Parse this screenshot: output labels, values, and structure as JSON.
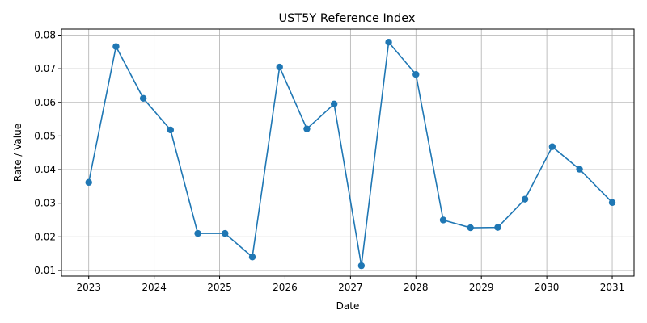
{
  "chart_data": {
    "type": "line",
    "title": "UST5Y Reference Index",
    "xlabel": "Date",
    "ylabel": "Rate / Value",
    "x_ticks": [
      "2023",
      "2024",
      "2025",
      "2026",
      "2027",
      "2028",
      "2029",
      "2030",
      "2031"
    ],
    "y_ticks": [
      "0.01",
      "0.02",
      "0.03",
      "0.04",
      "0.05",
      "0.06",
      "0.07",
      "0.08"
    ],
    "xlim": [
      "2022-08-01",
      "2031-05-01"
    ],
    "ylim": [
      0.0083,
      0.0818
    ],
    "grid": true,
    "series": [
      {
        "color": "#1f77b4",
        "marker": "circle",
        "x": [
          "2023-01-01",
          "2023-06-01",
          "2023-11-01",
          "2024-04-01",
          "2024-09-01",
          "2025-02-01",
          "2025-07-01",
          "2025-12-01",
          "2026-05-01",
          "2026-10-01",
          "2027-03-01",
          "2027-08-01",
          "2028-01-01",
          "2028-06-01",
          "2028-11-01",
          "2029-04-01",
          "2029-09-01",
          "2030-02-01",
          "2030-07-01",
          "2031-01-01"
        ],
        "y": [
          0.0362,
          0.0766,
          0.0612,
          0.0518,
          0.021,
          0.021,
          0.014,
          0.0705,
          0.0521,
          0.0595,
          0.0114,
          0.0779,
          0.0683,
          0.025,
          0.0227,
          0.0228,
          0.0312,
          0.0468,
          0.0401,
          0.0302
        ]
      }
    ]
  }
}
